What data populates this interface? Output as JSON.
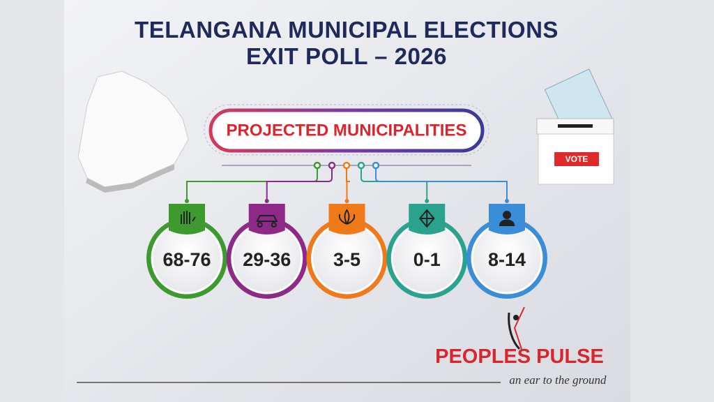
{
  "header": {
    "title_line1": "TELANGANA MUNICIPAL ELECTIONS",
    "title_line2": "EXIT POLL – 2026"
  },
  "badge": "PROJECTED MUNICIPALITIES",
  "items": [
    {
      "range": "68-76"
    },
    {
      "range": "29-36"
    },
    {
      "range": "3-5"
    },
    {
      "range": "0-1"
    },
    {
      "range": "8-14"
    }
  ],
  "ballot_box": "VOTE",
  "brand": {
    "name": "PEOPLES PULSE",
    "tagline": "an ear to the ground"
  }
}
